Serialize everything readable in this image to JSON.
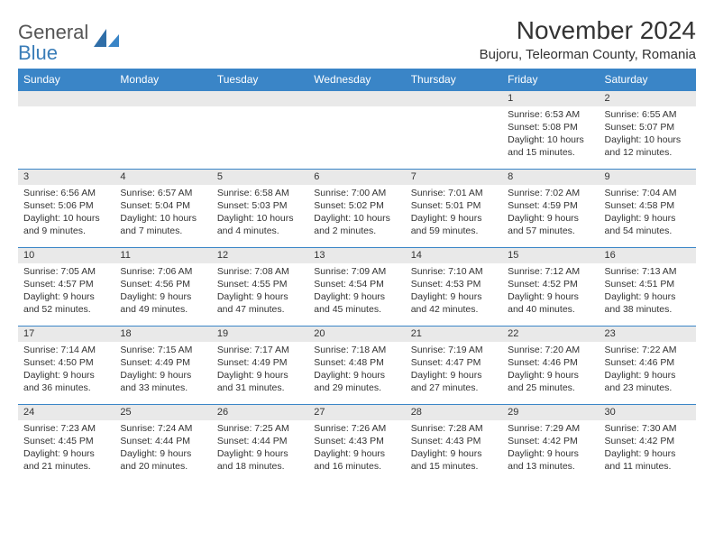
{
  "brand": {
    "name_gray": "General",
    "name_blue": "Blue"
  },
  "title": "November 2024",
  "location": "Bujoru, Teleorman County, Romania",
  "colors": {
    "header_bg": "#3a85c7",
    "header_text": "#ffffff",
    "daynum_bg": "#e9e9e9",
    "rule": "#3a85c7",
    "text": "#333333",
    "logo_gray": "#555555",
    "logo_blue": "#3a7db8"
  },
  "weekdays": [
    "Sunday",
    "Monday",
    "Tuesday",
    "Wednesday",
    "Thursday",
    "Friday",
    "Saturday"
  ],
  "weeks": [
    [
      null,
      null,
      null,
      null,
      null,
      {
        "n": "1",
        "sr": "6:53 AM",
        "ss": "5:08 PM",
        "dl": "10 hours and 15 minutes."
      },
      {
        "n": "2",
        "sr": "6:55 AM",
        "ss": "5:07 PM",
        "dl": "10 hours and 12 minutes."
      }
    ],
    [
      {
        "n": "3",
        "sr": "6:56 AM",
        "ss": "5:06 PM",
        "dl": "10 hours and 9 minutes."
      },
      {
        "n": "4",
        "sr": "6:57 AM",
        "ss": "5:04 PM",
        "dl": "10 hours and 7 minutes."
      },
      {
        "n": "5",
        "sr": "6:58 AM",
        "ss": "5:03 PM",
        "dl": "10 hours and 4 minutes."
      },
      {
        "n": "6",
        "sr": "7:00 AM",
        "ss": "5:02 PM",
        "dl": "10 hours and 2 minutes."
      },
      {
        "n": "7",
        "sr": "7:01 AM",
        "ss": "5:01 PM",
        "dl": "9 hours and 59 minutes."
      },
      {
        "n": "8",
        "sr": "7:02 AM",
        "ss": "4:59 PM",
        "dl": "9 hours and 57 minutes."
      },
      {
        "n": "9",
        "sr": "7:04 AM",
        "ss": "4:58 PM",
        "dl": "9 hours and 54 minutes."
      }
    ],
    [
      {
        "n": "10",
        "sr": "7:05 AM",
        "ss": "4:57 PM",
        "dl": "9 hours and 52 minutes."
      },
      {
        "n": "11",
        "sr": "7:06 AM",
        "ss": "4:56 PM",
        "dl": "9 hours and 49 minutes."
      },
      {
        "n": "12",
        "sr": "7:08 AM",
        "ss": "4:55 PM",
        "dl": "9 hours and 47 minutes."
      },
      {
        "n": "13",
        "sr": "7:09 AM",
        "ss": "4:54 PM",
        "dl": "9 hours and 45 minutes."
      },
      {
        "n": "14",
        "sr": "7:10 AM",
        "ss": "4:53 PM",
        "dl": "9 hours and 42 minutes."
      },
      {
        "n": "15",
        "sr": "7:12 AM",
        "ss": "4:52 PM",
        "dl": "9 hours and 40 minutes."
      },
      {
        "n": "16",
        "sr": "7:13 AM",
        "ss": "4:51 PM",
        "dl": "9 hours and 38 minutes."
      }
    ],
    [
      {
        "n": "17",
        "sr": "7:14 AM",
        "ss": "4:50 PM",
        "dl": "9 hours and 36 minutes."
      },
      {
        "n": "18",
        "sr": "7:15 AM",
        "ss": "4:49 PM",
        "dl": "9 hours and 33 minutes."
      },
      {
        "n": "19",
        "sr": "7:17 AM",
        "ss": "4:49 PM",
        "dl": "9 hours and 31 minutes."
      },
      {
        "n": "20",
        "sr": "7:18 AM",
        "ss": "4:48 PM",
        "dl": "9 hours and 29 minutes."
      },
      {
        "n": "21",
        "sr": "7:19 AM",
        "ss": "4:47 PM",
        "dl": "9 hours and 27 minutes."
      },
      {
        "n": "22",
        "sr": "7:20 AM",
        "ss": "4:46 PM",
        "dl": "9 hours and 25 minutes."
      },
      {
        "n": "23",
        "sr": "7:22 AM",
        "ss": "4:46 PM",
        "dl": "9 hours and 23 minutes."
      }
    ],
    [
      {
        "n": "24",
        "sr": "7:23 AM",
        "ss": "4:45 PM",
        "dl": "9 hours and 21 minutes."
      },
      {
        "n": "25",
        "sr": "7:24 AM",
        "ss": "4:44 PM",
        "dl": "9 hours and 20 minutes."
      },
      {
        "n": "26",
        "sr": "7:25 AM",
        "ss": "4:44 PM",
        "dl": "9 hours and 18 minutes."
      },
      {
        "n": "27",
        "sr": "7:26 AM",
        "ss": "4:43 PM",
        "dl": "9 hours and 16 minutes."
      },
      {
        "n": "28",
        "sr": "7:28 AM",
        "ss": "4:43 PM",
        "dl": "9 hours and 15 minutes."
      },
      {
        "n": "29",
        "sr": "7:29 AM",
        "ss": "4:42 PM",
        "dl": "9 hours and 13 minutes."
      },
      {
        "n": "30",
        "sr": "7:30 AM",
        "ss": "4:42 PM",
        "dl": "9 hours and 11 minutes."
      }
    ]
  ],
  "labels": {
    "sunrise": "Sunrise:",
    "sunset": "Sunset:",
    "daylight": "Daylight:"
  }
}
